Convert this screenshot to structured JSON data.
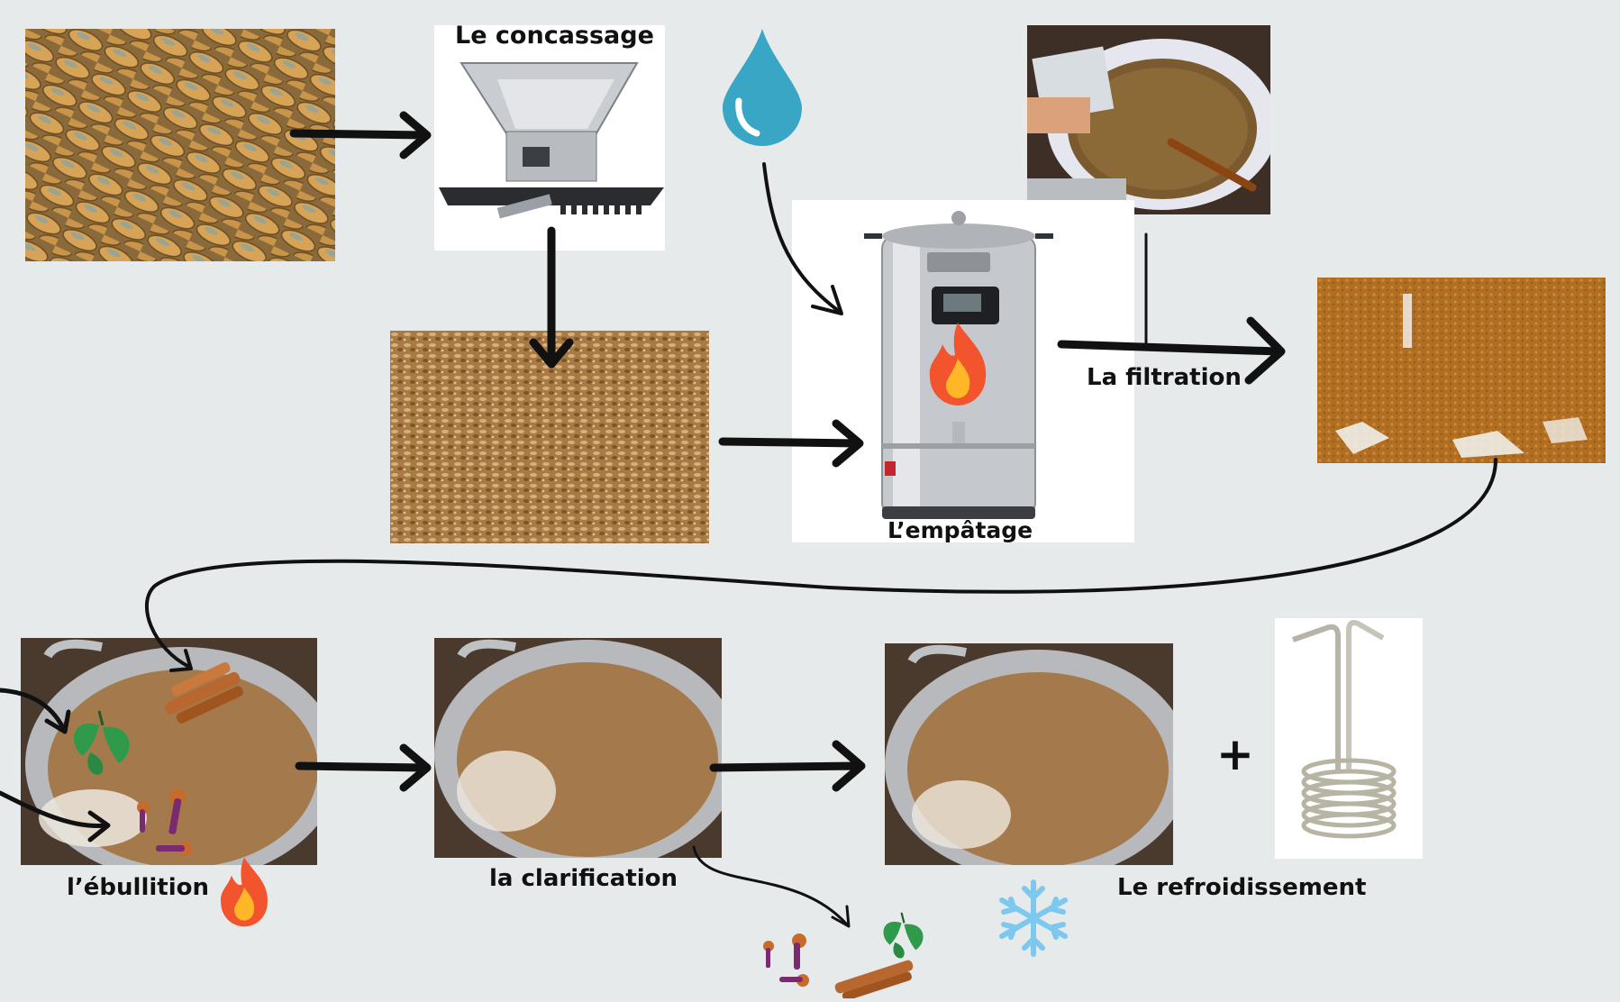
{
  "steps": {
    "crushing": "Le concassage",
    "mashing": "L’empâtage",
    "filtration": "La filtration",
    "boiling": "l’ébullition",
    "clarification": "la clarification",
    "cooling": "Le refroidissement"
  },
  "plus_sign": "+",
  "colors": {
    "background": "#e7eaeb",
    "arrow": "#111111",
    "water": "#3aa6c6",
    "fire_outer": "#f2542d",
    "fire_inner": "#ffb627",
    "snow": "#7cc8ee",
    "hops": "#2e9a4a",
    "cinnamon": "#b8672e",
    "clove": "#7a2a6e"
  }
}
